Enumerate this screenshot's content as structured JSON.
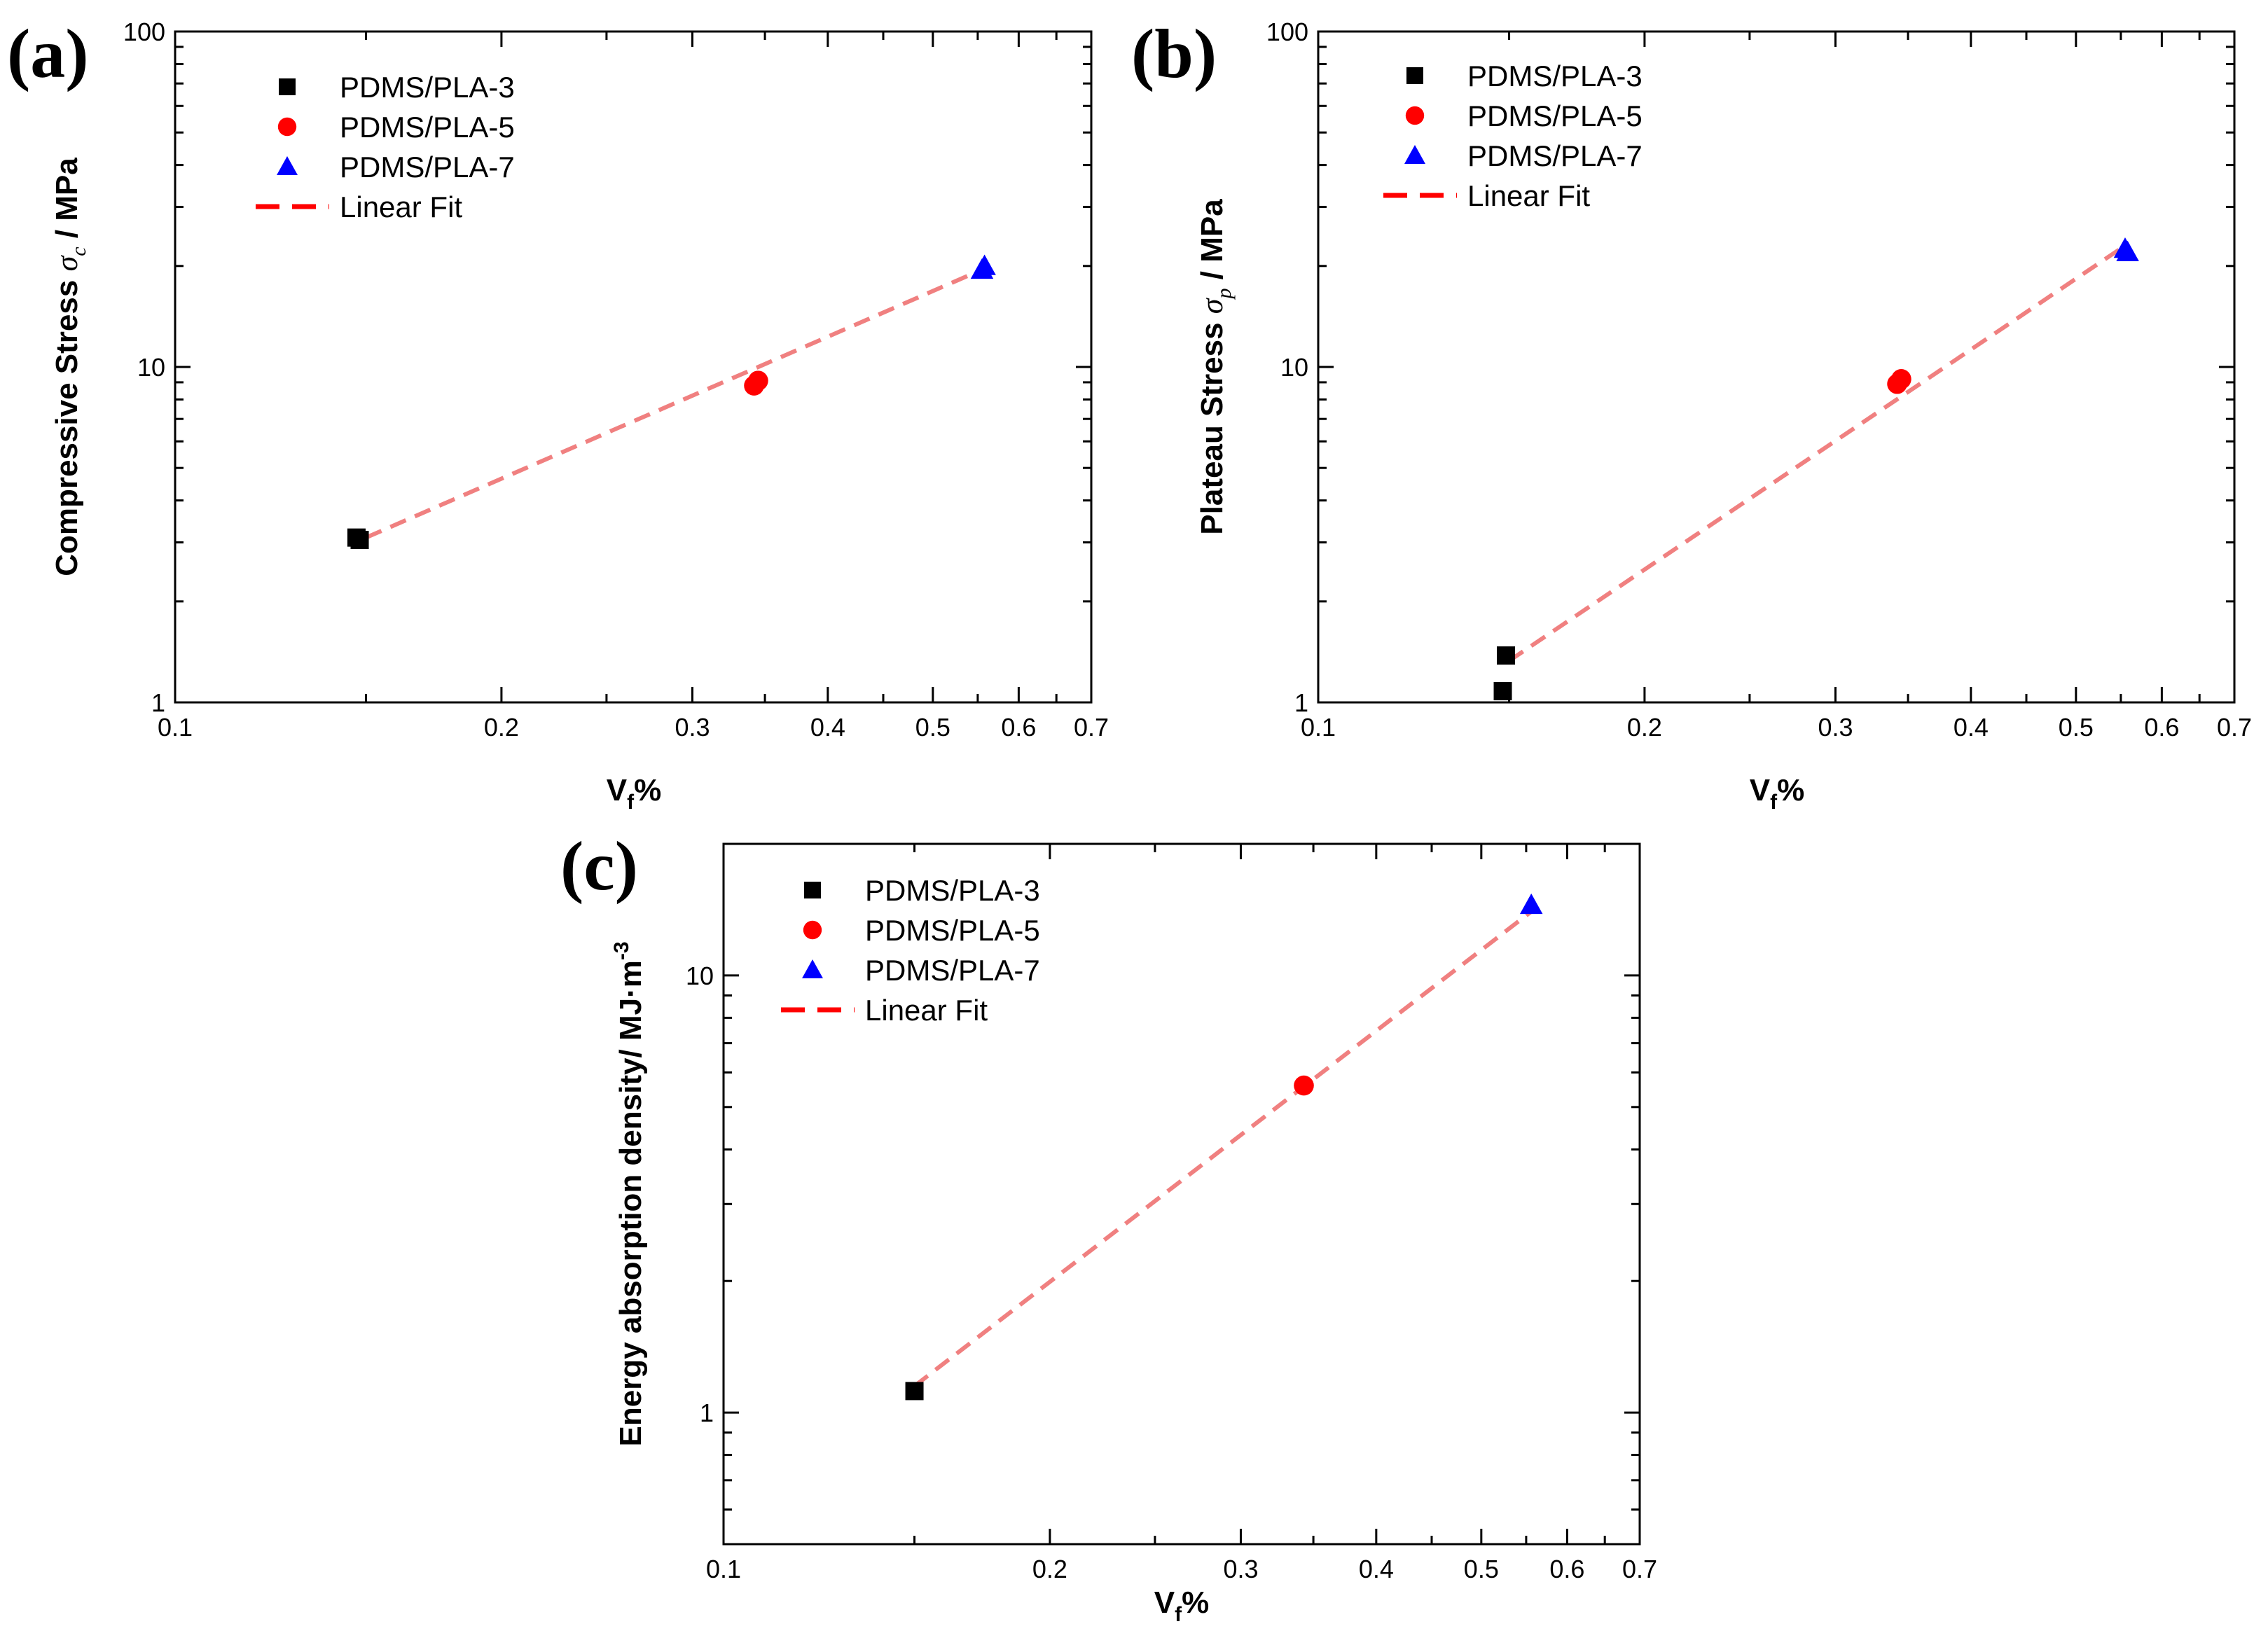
{
  "colors": {
    "series_3": "#000000",
    "series_5": "#ff0000",
    "series_7": "#0000ff",
    "fit_line": "#f08080",
    "fit_legend": "#ff0000"
  },
  "chart_data": [
    {
      "panel_label": "(a)",
      "type": "scatter",
      "xscale": "log",
      "yscale": "log",
      "xlim": [
        0.1,
        0.7
      ],
      "ylim": [
        1,
        100
      ],
      "x_ticks": [
        "0.1",
        "0.2",
        "0.3",
        "0.4",
        "0.5",
        "0.6",
        "0.7"
      ],
      "y_ticks": [
        "1",
        "10",
        "100"
      ],
      "xlabel": {
        "main": "V",
        "sub": "f",
        "rest": "%"
      },
      "ylabel": {
        "prefix": "Compressive Stress ",
        "symbol": "σ",
        "sub": "c",
        "suffix": " / MPa"
      },
      "legend_position": "top-left",
      "legend": [
        "PDMS/PLA-3",
        "PDMS/PLA-5",
        "PDMS/PLA-7",
        "Linear Fit"
      ],
      "series": [
        {
          "name": "PDMS/PLA-3",
          "marker": "square",
          "points": [
            [
              0.148,
              3.05
            ],
            [
              0.147,
              3.1
            ]
          ]
        },
        {
          "name": "PDMS/PLA-5",
          "marker": "circle",
          "points": [
            [
              0.342,
              8.8
            ],
            [
              0.345,
              9.1
            ]
          ]
        },
        {
          "name": "PDMS/PLA-7",
          "marker": "triangle",
          "points": [
            [
              0.555,
              19.5
            ],
            [
              0.558,
              20.0
            ]
          ]
        }
      ],
      "fit": {
        "name": "Linear Fit",
        "x": [
          0.15,
          0.555
        ],
        "y": [
          3.1,
          19.5
        ]
      }
    },
    {
      "panel_label": "(b)",
      "type": "scatter",
      "xscale": "log",
      "yscale": "log",
      "xlim": [
        0.1,
        0.7
      ],
      "ylim": [
        1,
        100
      ],
      "x_ticks": [
        "0.1",
        "0.2",
        "0.3",
        "0.4",
        "0.5",
        "0.6",
        "0.7"
      ],
      "y_ticks": [
        "1",
        "10",
        "100"
      ],
      "xlabel": {
        "main": "V",
        "sub": "f",
        "rest": "%"
      },
      "ylabel": {
        "prefix": "Plateau Stress ",
        "symbol": "σ",
        "sub": "p",
        "suffix": " / MPa"
      },
      "legend_position": "top-left",
      "legend": [
        "PDMS/PLA-3",
        "PDMS/PLA-5",
        "PDMS/PLA-7",
        "Linear Fit"
      ],
      "series": [
        {
          "name": "PDMS/PLA-3",
          "marker": "square",
          "points": [
            [
              0.148,
              1.08
            ],
            [
              0.149,
              1.38
            ]
          ]
        },
        {
          "name": "PDMS/PLA-5",
          "marker": "circle",
          "points": [
            [
              0.342,
              8.9
            ],
            [
              0.345,
              9.2
            ]
          ]
        },
        {
          "name": "PDMS/PLA-7",
          "marker": "triangle",
          "points": [
            [
              0.555,
              22.5
            ],
            [
              0.558,
              22.0
            ]
          ]
        }
      ],
      "fit": {
        "name": "Linear Fit",
        "x": [
          0.15,
          0.555
        ],
        "y": [
          1.33,
          23.0
        ]
      }
    },
    {
      "panel_label": "(c)",
      "type": "scatter",
      "xscale": "log",
      "yscale": "log",
      "xlim": [
        0.1,
        0.7
      ],
      "ylim": [
        0.5,
        20
      ],
      "x_ticks": [
        "0.1",
        "0.2",
        "0.3",
        "0.4",
        "0.5",
        "0.6",
        "0.7"
      ],
      "y_ticks": [
        "1",
        "10"
      ],
      "xlabel": {
        "main": "V",
        "sub": "f",
        "rest": "%"
      },
      "ylabel": {
        "prefix": "Energy absorption density/ MJ·m",
        "sup": "-3"
      },
      "legend_position": "top-left",
      "legend": [
        "PDMS/PLA-3",
        "PDMS/PLA-5",
        "PDMS/PLA-7",
        "Linear Fit"
      ],
      "series": [
        {
          "name": "PDMS/PLA-3",
          "marker": "square",
          "points": [
            [
              0.15,
              1.12
            ]
          ]
        },
        {
          "name": "PDMS/PLA-5",
          "marker": "circle",
          "points": [
            [
              0.343,
              5.6
            ]
          ]
        },
        {
          "name": "PDMS/PLA-7",
          "marker": "triangle",
          "points": [
            [
              0.556,
              14.5
            ]
          ]
        }
      ],
      "fit": {
        "name": "Linear Fit",
        "x": [
          0.15,
          0.556
        ],
        "y": [
          1.15,
          14.0
        ]
      }
    }
  ]
}
